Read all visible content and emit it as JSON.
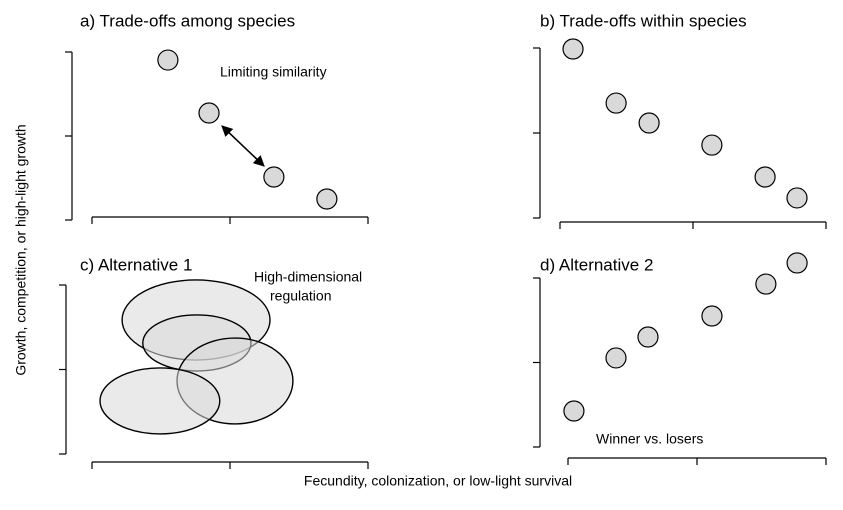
{
  "chart_data": [
    {
      "type": "scatter",
      "title": "a) Trade-offs among species",
      "annotation": "Limiting similarity",
      "x": [
        0.275,
        0.424,
        0.659,
        0.851
      ],
      "y": [
        0.952,
        0.637,
        0.256,
        0.125
      ],
      "xlim": [
        0,
        1
      ],
      "ylim": [
        0,
        1
      ],
      "xticks": [
        0,
        0.5,
        1
      ],
      "yticks": [
        0,
        0.5,
        1
      ],
      "color": "#d9d9d9"
    },
    {
      "type": "scatter",
      "title": "b) Trade-offs within species",
      "x": [
        0.049,
        0.211,
        0.335,
        0.571,
        0.771,
        0.891
      ],
      "y": [
        0.994,
        0.676,
        0.559,
        0.429,
        0.241,
        0.118
      ],
      "xlim": [
        0,
        1
      ],
      "ylim": [
        0,
        1
      ],
      "xticks": [
        0,
        0.5,
        1
      ],
      "yticks": [
        0,
        0.5,
        1
      ],
      "color": "#d9d9d9"
    },
    {
      "type": "ellipse",
      "title": "c) Alternative 1",
      "annotation": [
        "High-dimensional",
        "regulation"
      ],
      "x": [
        0.377,
        0.38,
        0.518,
        0.246
      ],
      "y": [
        0.793,
        0.657,
        0.432,
        0.314
      ],
      "rx": [
        0.268,
        0.196,
        0.21,
        0.217
      ],
      "ry": [
        0.237,
        0.166,
        0.254,
        0.195
      ],
      "xlim": [
        0,
        1
      ],
      "ylim": [
        0,
        1
      ],
      "xticks": [
        0,
        0.5,
        1
      ],
      "yticks": [
        0,
        0.5,
        1
      ],
      "color": "#d9d9d9"
    },
    {
      "type": "scatter",
      "title": "d) Alternative 2",
      "annotation": "Winner vs. losers",
      "x": [
        0.023,
        0.186,
        0.31,
        0.558,
        0.767,
        0.888
      ],
      "y": [
        0.213,
        0.527,
        0.651,
        0.775,
        0.964,
        1.089
      ],
      "xlim": [
        0,
        1
      ],
      "ylim": [
        0,
        1
      ],
      "xticks": [
        0,
        0.5,
        1
      ],
      "yticks": [
        0,
        0.5,
        1
      ],
      "color": "#d9d9d9"
    }
  ],
  "xlabel": "Fecundity, colonization, or low-light survival",
  "ylabel": "Growth, competition, or high-light growth"
}
